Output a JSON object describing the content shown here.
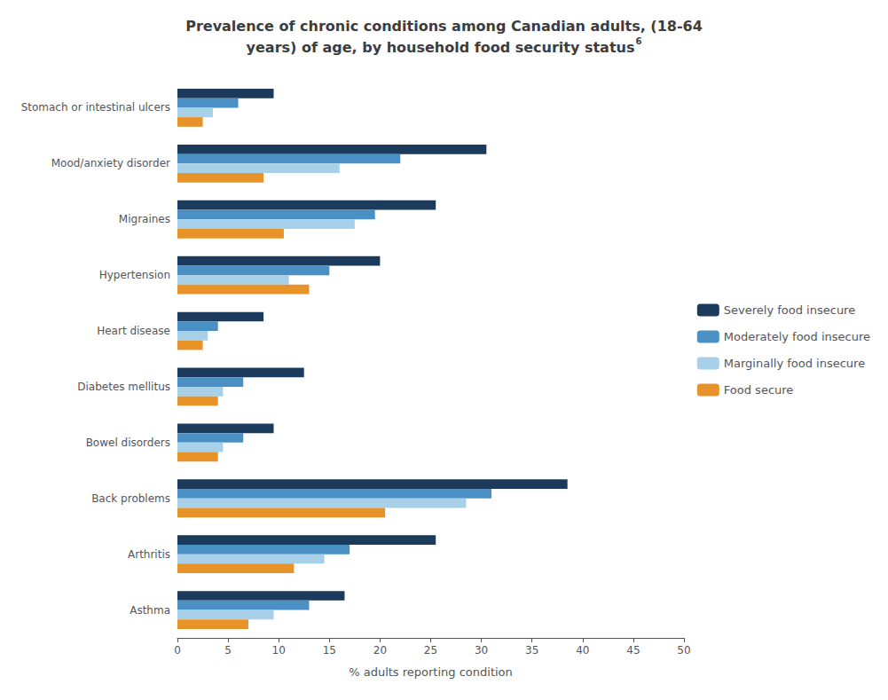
{
  "chart_data": {
    "type": "bar",
    "orientation": "horizontal",
    "title": "Prevalence of chronic conditions among Canadian adults, (18-64\nyears) of age, by household food security status",
    "annotations": [
      "6"
    ],
    "xlabel": "% adults reporting condition",
    "categories": [
      "Stomach or intestinal ulcers",
      "Mood/anxiety disorder",
      "Migraines",
      "Hypertension",
      "Heart disease",
      "Diabetes mellitus",
      "Bowel disorders",
      "Back problems",
      "Arthritis",
      "Asthma"
    ],
    "series": [
      {
        "name": "Severely food insecure",
        "color": "#1b3a5c",
        "values": [
          9.5,
          30.5,
          25.5,
          20.0,
          8.5,
          12.5,
          9.5,
          38.5,
          25.5,
          16.5
        ]
      },
      {
        "name": "Moderately food insecure",
        "color": "#4a90c4",
        "values": [
          6.0,
          22.0,
          19.5,
          15.0,
          4.0,
          6.5,
          6.5,
          31.0,
          17.0,
          13.0
        ]
      },
      {
        "name": "Marginally food insecure",
        "color": "#a8d0e8",
        "values": [
          3.5,
          16.0,
          17.5,
          11.0,
          3.0,
          4.5,
          4.5,
          28.5,
          14.5,
          9.5
        ]
      },
      {
        "name": "Food secure",
        "color": "#e8922a",
        "values": [
          2.5,
          8.5,
          10.5,
          13.0,
          2.5,
          4.0,
          4.0,
          20.5,
          11.5,
          7.0
        ]
      }
    ],
    "xlim": [
      0,
      50
    ],
    "xticks": [
      0,
      5,
      10,
      15,
      20,
      25,
      30,
      35,
      40,
      45,
      50
    ],
    "grid": false,
    "legend": "right"
  }
}
